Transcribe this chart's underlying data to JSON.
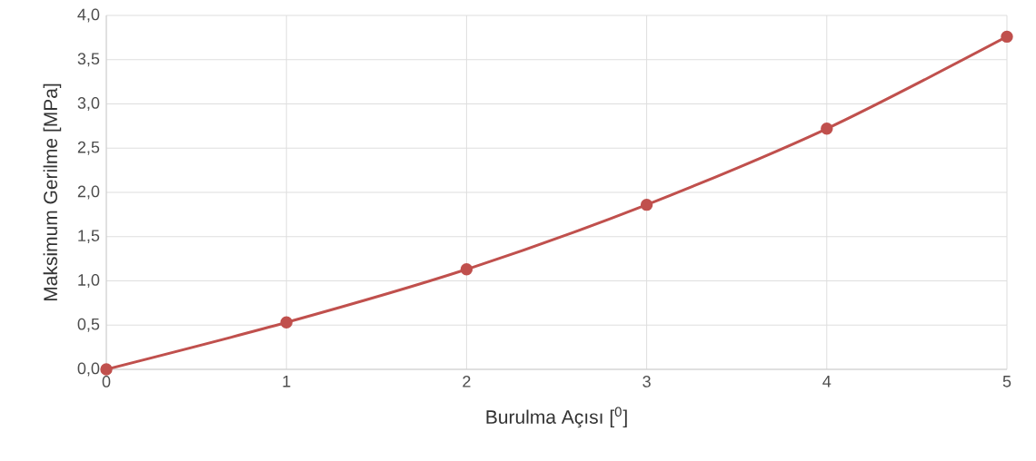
{
  "chart_data": {
    "type": "line",
    "xlabel": "Burulma Açısı [$^{0}$]",
    "ylabel": "Maksimum Gerilme [MPa]",
    "x": [
      0,
      1,
      2,
      3,
      4,
      5
    ],
    "series": [
      {
        "color": "#c0504d",
        "values": [
          0,
          0.53,
          1.13,
          1.86,
          2.72,
          3.76
        ]
      }
    ],
    "xlim": [
      0,
      5
    ],
    "xticks": [
      0,
      1,
      2,
      3,
      4,
      5
    ],
    "ylim": [
      0,
      4
    ],
    "yticks": [
      {
        "value": 0,
        "label": "0,0"
      },
      {
        "value": 0.5,
        "label": "0,5"
      },
      {
        "value": 1,
        "label": "1,0"
      },
      {
        "value": 1.5,
        "label": "1,5"
      },
      {
        "value": 2,
        "label": "2,0"
      },
      {
        "value": 2.5,
        "label": "2,5"
      },
      {
        "value": 3,
        "label": "3,0"
      },
      {
        "value": 3.5,
        "label": "3,5"
      },
      {
        "value": 4,
        "label": "4,0"
      }
    ],
    "grid": true,
    "marker": "circle",
    "line_style": "solid"
  }
}
